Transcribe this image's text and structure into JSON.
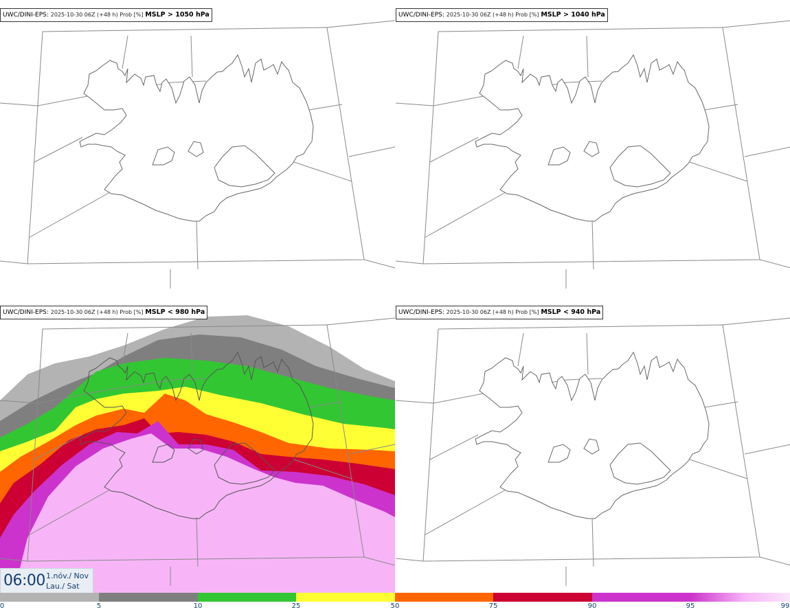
{
  "panels": [
    {
      "model": "UWC/DINI-EPS",
      "run": "2025-10-30 06Z (+48 h) Prob [%]",
      "threshold": "MSLP > 1050 hPa"
    },
    {
      "model": "UWC/DINI-EPS",
      "run": "2025-10-30 06Z (+48 h) Prob [%]",
      "threshold": "MSLP > 1040 hPa"
    },
    {
      "model": "UWC/DINI-EPS",
      "run": "2025-10-30 06Z (+48 h) Prob [%]",
      "threshold": "MSLP < 980 hPa"
    },
    {
      "model": "UWC/DINI-EPS",
      "run": "2025-10-30 06Z (+48 h) Prob [%]",
      "threshold": "MSLP < 940 hPa"
    }
  ],
  "time": {
    "clock": "06:00",
    "date_line": "1.nóv./ Nov",
    "day_line": "Lau./ Sat"
  },
  "legend": {
    "ticks": [
      "0",
      "5",
      "10",
      "25",
      "50",
      "75",
      "90",
      "95",
      "99"
    ],
    "colors": [
      "#ffffff",
      "#b3b3b3",
      "#7f7f7f",
      "#33c633",
      "#ffff33",
      "#ff6600",
      "#cc0033",
      "#cc33cc",
      "#f7b5f7"
    ]
  },
  "colors": {
    "coast": "#666666",
    "grid": "#888888",
    "prob_5": "#b3b3b3",
    "prob_10": "#7f7f7f",
    "prob_25": "#33c633",
    "prob_50": "#ffff33",
    "prob_75": "#ff6600",
    "prob_90": "#cc0033",
    "prob_95": "#cc33cc",
    "prob_99": "#f7b5f7",
    "time_text": "#123e70"
  }
}
